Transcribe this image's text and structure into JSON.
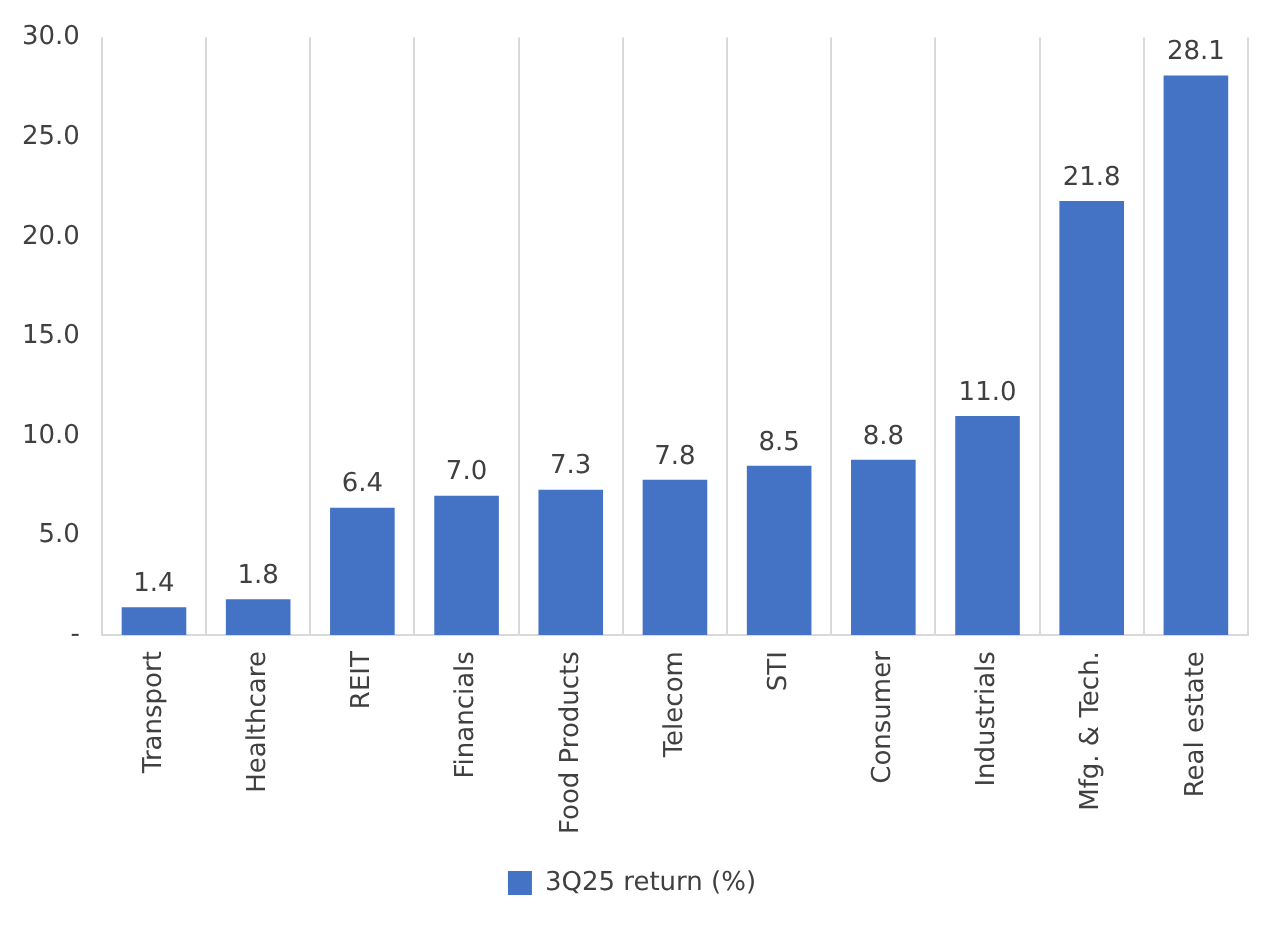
{
  "chart_data": {
    "type": "bar",
    "categories": [
      "Transport",
      "Healthcare",
      "REIT",
      "Financials",
      "Food Products",
      "Telecom",
      "STI",
      "Consumer",
      "Industrials",
      "Mfg. & Tech.",
      "Real estate"
    ],
    "series": [
      {
        "name": "3Q25 return (%)",
        "color": "#4472c4",
        "values": [
          1.4,
          1.8,
          6.4,
          7.0,
          7.3,
          7.8,
          8.5,
          8.8,
          11.0,
          21.8,
          28.1
        ]
      }
    ],
    "ylim": [
      0,
      30
    ],
    "yticks": [
      {
        "value": 0,
        "label": "-"
      },
      {
        "value": 5,
        "label": "5.0"
      },
      {
        "value": 10,
        "label": "10.0"
      },
      {
        "value": 15,
        "label": "15.0"
      },
      {
        "value": 20,
        "label": "20.0"
      },
      {
        "value": 25,
        "label": "25.0"
      },
      {
        "value": 30,
        "label": "30.0"
      }
    ],
    "value_labels": [
      "1.4",
      "1.8",
      "6.4",
      "7.0",
      "7.3",
      "7.8",
      "8.5",
      "8.8",
      "11.0",
      "21.8",
      "28.1"
    ],
    "grid": "x",
    "legend": "bottom"
  }
}
